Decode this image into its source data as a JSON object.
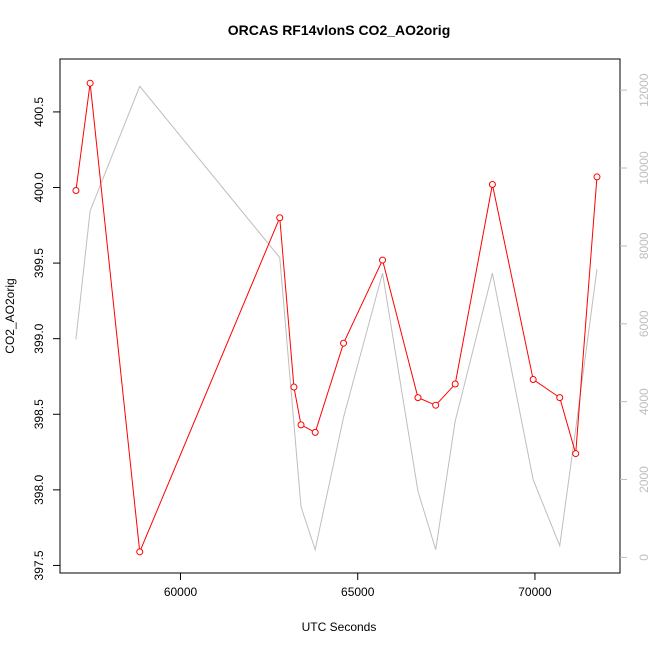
{
  "chart_data": {
    "type": "line",
    "title": "ORCAS RF14vlonS CO2_AO2orig",
    "xlabel": "UTC Seconds",
    "ylabel": "CO2_AO2orig",
    "xlim": [
      56600,
      72400
    ],
    "ylim": [
      397.45,
      400.85
    ],
    "y2lim": [
      -400,
      12800
    ],
    "x_ticks": [
      60000,
      65000,
      70000
    ],
    "x_tick_labels": [
      "60000",
      "65000",
      "70000"
    ],
    "y_ticks": [
      397.5,
      398.0,
      398.5,
      399.0,
      399.5,
      400.0,
      400.5
    ],
    "y_tick_labels": [
      "397.5",
      "398.0",
      "398.5",
      "399.0",
      "399.5",
      "400.0",
      "400.5"
    ],
    "y2_ticks": [
      0,
      2000,
      4000,
      6000,
      8000,
      10000,
      12000
    ],
    "y2_tick_labels": [
      "0",
      "2000",
      "4000",
      "6000",
      "8000",
      "10000",
      "12000"
    ],
    "grid": false,
    "legend": "none",
    "series": [
      {
        "axis": "left",
        "color": "#ff0000",
        "style": "line+open-circles",
        "x": [
          57050,
          57450,
          58850,
          62800,
          63200,
          63400,
          63800,
          64600,
          65700,
          66700,
          67200,
          67750,
          68800,
          69950,
          70700,
          71150,
          71750
        ],
        "y": [
          399.98,
          400.69,
          397.59,
          399.8,
          398.68,
          398.43,
          398.38,
          398.97,
          399.52,
          398.61,
          398.56,
          398.7,
          400.02,
          398.73,
          398.61,
          398.24,
          400.07
        ]
      },
      {
        "axis": "right",
        "color": "#bebebe",
        "style": "line",
        "x": [
          57050,
          57450,
          58850,
          62800,
          63400,
          63800,
          64600,
          65700,
          66700,
          67200,
          67750,
          68800,
          69950,
          70700,
          71150,
          71750
        ],
        "y": [
          5600,
          8900,
          12100,
          7700,
          1300,
          200,
          3600,
          7300,
          1700,
          200,
          3500,
          7300,
          2000,
          300,
          3300,
          7400
        ]
      }
    ]
  }
}
